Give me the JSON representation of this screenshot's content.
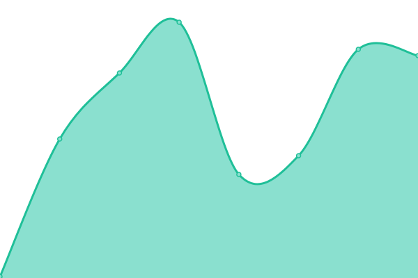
{
  "chart_data": {
    "type": "area",
    "x": [
      0,
      1,
      2,
      3,
      4,
      5,
      6,
      7
    ],
    "values": [
      2,
      200,
      295,
      368,
      149,
      176,
      329,
      320
    ],
    "ylim": [
      0,
      400
    ],
    "xlim": [
      0,
      7
    ],
    "smooth": true,
    "markers": true,
    "grid": false,
    "axes_visible": false,
    "title": "",
    "xlabel": "",
    "ylabel": "",
    "colors": {
      "line": "#1fbf98",
      "fill": "#8ae0cf",
      "marker_fill": "#8ae0cf",
      "marker_stroke": "#1fbf98"
    }
  }
}
